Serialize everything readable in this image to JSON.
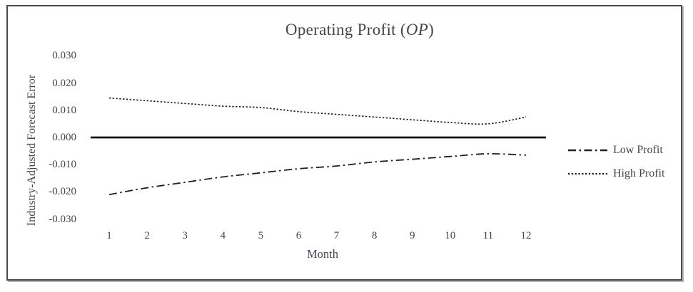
{
  "figure": {
    "title": {
      "prefix": "Operating Profit (",
      "italic": "OP",
      "suffix": ")"
    },
    "y_axis": {
      "label": "Industry-Adjusted Forecast Error",
      "tick_labels": [
        "0.030",
        "0.020",
        "0.010",
        "0.000",
        "-0.010",
        "-0.020",
        "-0.030"
      ]
    },
    "x_axis": {
      "label": "Month",
      "tick_labels": [
        "1",
        "2",
        "3",
        "4",
        "5",
        "6",
        "7",
        "8",
        "9",
        "10",
        "11",
        "12"
      ]
    },
    "legend": [
      {
        "label": "Low Profit",
        "line_style": "dash-dot"
      },
      {
        "label": "High Profit",
        "line_style": "dotted"
      }
    ],
    "colors": {
      "text": "#43464d",
      "line": "#1f1f1f",
      "zero_line": "#111111",
      "frame": "#4b4b4b",
      "background": "#ffffff"
    }
  },
  "chart_data": {
    "type": "line",
    "title": "Operating Profit (OP)",
    "xlabel": "Month",
    "ylabel": "Industry-Adjusted Forecast Error",
    "x": [
      1,
      2,
      3,
      4,
      5,
      6,
      7,
      8,
      9,
      10,
      11,
      12
    ],
    "yticks": [
      0.03,
      0.02,
      0.01,
      0.0,
      -0.01,
      -0.02,
      -0.03
    ],
    "ylim": [
      -0.035,
      0.035
    ],
    "grid": false,
    "legend_position": "right",
    "zero_line_emphasized": true,
    "series": [
      {
        "name": "Low Profit",
        "style": "dash-dot",
        "values": [
          -0.021,
          -0.0185,
          -0.0165,
          -0.0145,
          -0.013,
          -0.0115,
          -0.0105,
          -0.009,
          -0.008,
          -0.007,
          -0.006,
          -0.0065
        ]
      },
      {
        "name": "High Profit",
        "style": "dotted",
        "values": [
          0.0145,
          0.0135,
          0.0125,
          0.0115,
          0.011,
          0.0095,
          0.0085,
          0.0075,
          0.0065,
          0.0055,
          0.005,
          0.0075
        ]
      }
    ]
  }
}
